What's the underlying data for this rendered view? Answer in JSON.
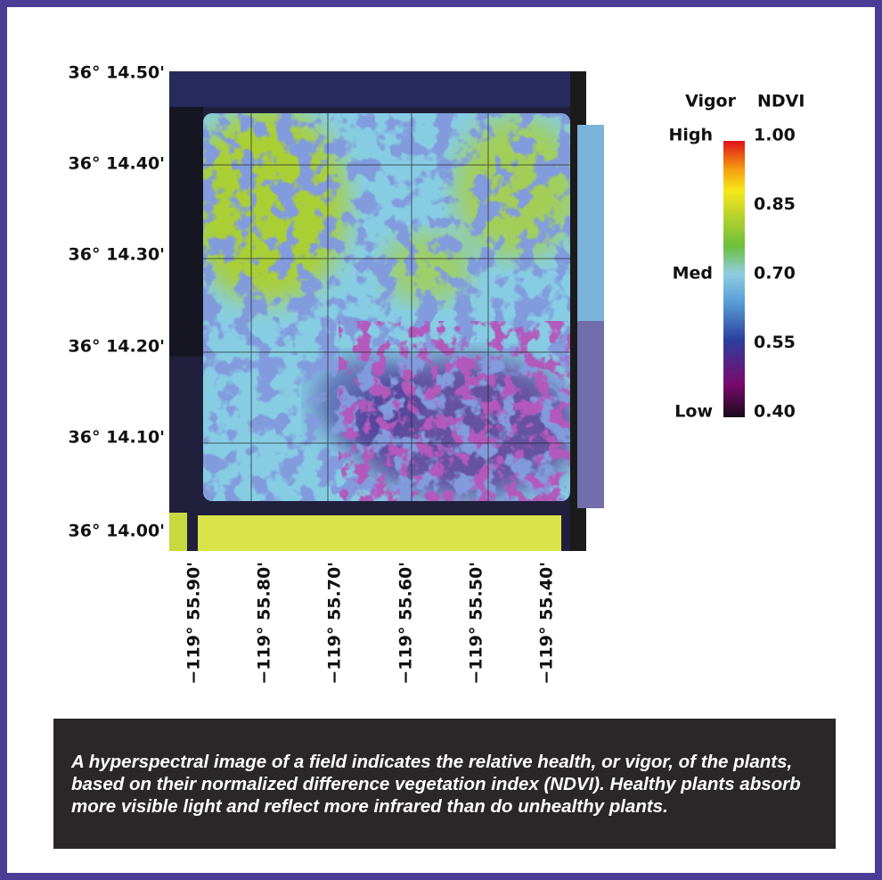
{
  "lat_labels": [
    "36° 14.50'",
    "36° 14.40'",
    "36° 14.30'",
    "36° 14.20'",
    "36° 14.10'",
    "36° 14.00'"
  ],
  "lon_labels": [
    "−119° 55.90'",
    "−119° 55.80'",
    "−119° 55.70'",
    "−119° 55.60'",
    "−119° 55.50'",
    "−119° 55.40'"
  ],
  "legend": {
    "vigor_title": "Vigor",
    "ndvi_title": "NDVI",
    "vigor_levels": [
      "High",
      "Med",
      "Low"
    ],
    "ndvi_range": [
      0.4,
      1.0
    ],
    "ndvi_ticks": [
      {
        "value": 1.0,
        "label": "1.00"
      },
      {
        "value": 0.85,
        "label": "0.85"
      },
      {
        "value": 0.7,
        "label": "0.70"
      },
      {
        "value": 0.55,
        "label": "0.55"
      },
      {
        "value": 0.4,
        "label": "0.40"
      }
    ]
  },
  "caption": "A hyperspectral image of a field indicates the relative health, or vigor, of the plants, based on their normalized difference vegetation index (NDVI). Healthy plants absorb more visible light and reflect more infrared than do unhealthy plants."
}
